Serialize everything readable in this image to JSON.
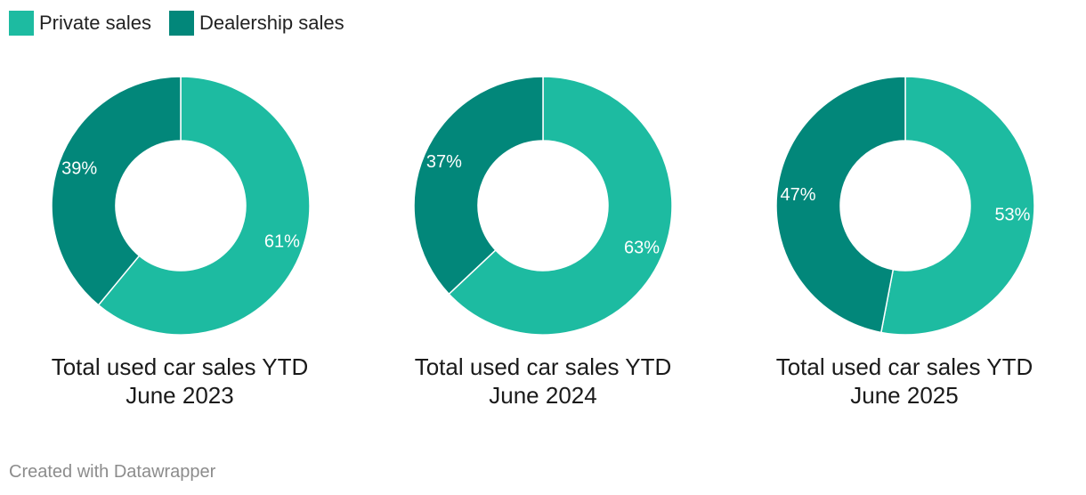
{
  "legend": [
    {
      "label": "Private sales",
      "color": "#1dbba1"
    },
    {
      "label": "Dealership sales",
      "color": "#02877a"
    }
  ],
  "chart_data": [
    {
      "type": "pie",
      "title_line1": "Total used car sales YTD",
      "title_line2": "June 2023",
      "series": [
        {
          "name": "Private sales",
          "value": 61,
          "label": "61%"
        },
        {
          "name": "Dealership sales",
          "value": 39,
          "label": "39%"
        }
      ]
    },
    {
      "type": "pie",
      "title_line1": "Total used car sales YTD",
      "title_line2": "June 2024",
      "series": [
        {
          "name": "Private sales",
          "value": 63,
          "label": "63%"
        },
        {
          "name": "Dealership sales",
          "value": 37,
          "label": "37%"
        }
      ]
    },
    {
      "type": "pie",
      "title_line1": "Total used car sales YTD",
      "title_line2": "June 2025",
      "series": [
        {
          "name": "Private sales",
          "value": 53,
          "label": "53%"
        },
        {
          "name": "Dealership sales",
          "value": 47,
          "label": "47%"
        }
      ]
    }
  ],
  "footer": "Created with Datawrapper"
}
